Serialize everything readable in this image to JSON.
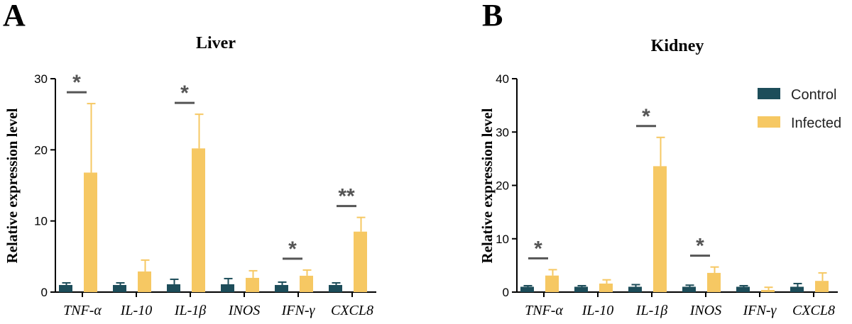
{
  "colors": {
    "control": "#1d4d5a",
    "infected": "#f6c863",
    "axis": "#000000",
    "sig": "#555555"
  },
  "legend": {
    "items": [
      {
        "label": "Control",
        "color_key": "control"
      },
      {
        "label": "Infected",
        "color_key": "infected"
      }
    ]
  },
  "chart_data": [
    {
      "panel": "A",
      "type": "bar",
      "title": "Liver",
      "ylabel": "Relative expression level",
      "ylim": [
        0,
        30
      ],
      "yticks": [
        0,
        10,
        20,
        30
      ],
      "categories": [
        "TNF-α",
        "IL-10",
        "IL-1β",
        "INOS",
        "IFN-γ",
        "CXCL8"
      ],
      "series": [
        {
          "name": "Control",
          "values": [
            1.0,
            1.0,
            1.1,
            1.1,
            1.0,
            1.0
          ],
          "errors": [
            0.3,
            0.3,
            0.7,
            0.8,
            0.4,
            0.3
          ]
        },
        {
          "name": "Infected",
          "values": [
            16.8,
            2.9,
            20.2,
            2.0,
            2.3,
            8.5
          ],
          "errors": [
            9.7,
            1.6,
            4.8,
            1.0,
            0.8,
            2.0
          ]
        }
      ],
      "significance": [
        {
          "category": "TNF-α",
          "label": "*"
        },
        {
          "category": "IL-1β",
          "label": "*"
        },
        {
          "category": "IFN-γ",
          "label": "*"
        },
        {
          "category": "CXCL8",
          "label": "**"
        }
      ],
      "legend": false,
      "grid": false
    },
    {
      "panel": "B",
      "type": "bar",
      "title": "Kidney",
      "ylabel": "Relative expression level",
      "ylim": [
        0,
        40
      ],
      "yticks": [
        0,
        10,
        20,
        30,
        40
      ],
      "categories": [
        "TNF-α",
        "IL-10",
        "IL-1β",
        "INOS",
        "IFN-γ",
        "CXCL8"
      ],
      "series": [
        {
          "name": "Control",
          "values": [
            1.0,
            1.0,
            1.0,
            1.0,
            1.0,
            1.0
          ],
          "errors": [
            0.2,
            0.2,
            0.4,
            0.3,
            0.2,
            0.6
          ]
        },
        {
          "name": "Infected",
          "values": [
            3.1,
            1.6,
            23.6,
            3.6,
            0.4,
            2.1
          ],
          "errors": [
            1.1,
            0.7,
            5.4,
            1.1,
            0.5,
            1.5
          ]
        }
      ],
      "significance": [
        {
          "category": "TNF-α",
          "label": "*"
        },
        {
          "category": "IL-1β",
          "label": "*"
        },
        {
          "category": "INOS",
          "label": "*"
        }
      ],
      "legend": true,
      "legend_position": "top-right",
      "grid": false
    }
  ]
}
